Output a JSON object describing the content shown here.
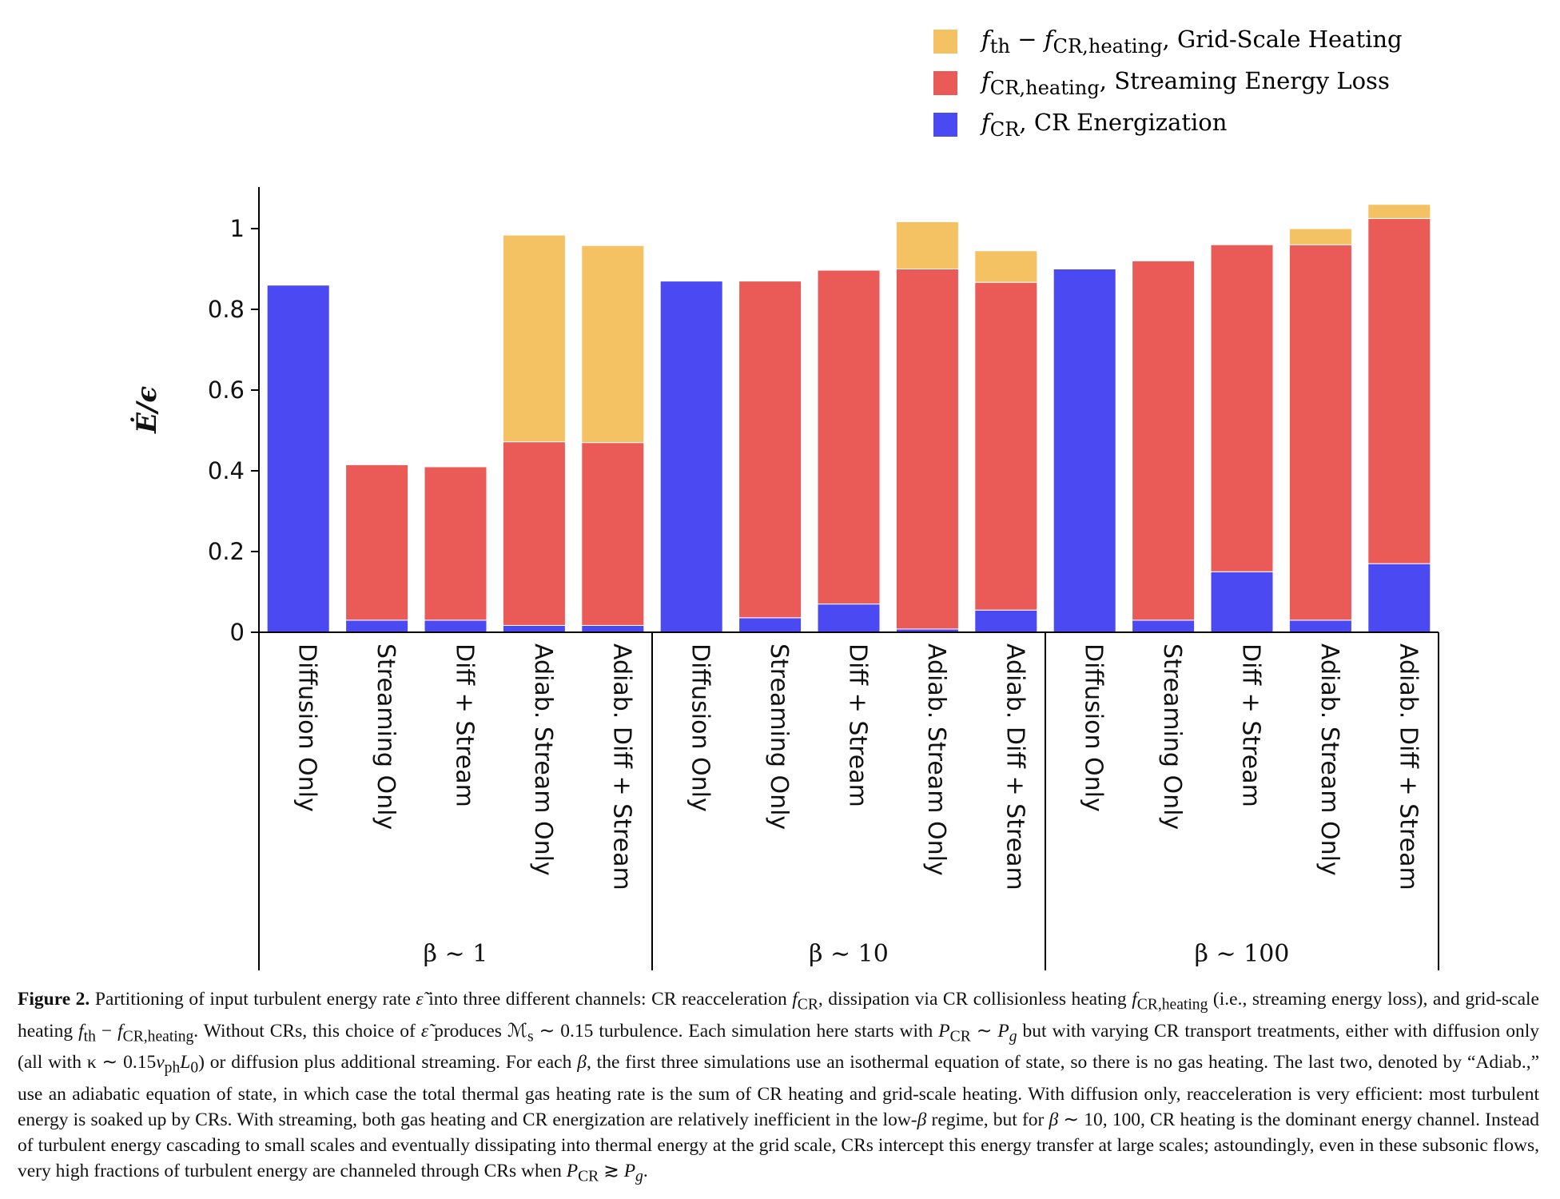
{
  "chart_data": {
    "type": "bar",
    "stacked": true,
    "ylabel": "Ė/ϵ",
    "ylim": [
      0,
      1.1
    ],
    "yticks": [
      0,
      0.2,
      0.4,
      0.6,
      0.8,
      1
    ],
    "ytick_labels": [
      "0",
      "0.2",
      "0.4",
      "0.6",
      "0.8",
      "1"
    ],
    "grid": false,
    "legend_position": "top-right",
    "categories": [
      "Diffusion Only",
      "Streaming Only",
      "Diff + Stream",
      "Adiab. Stream Only",
      "Adiab. Diff + Stream",
      "Diffusion Only",
      "Streaming Only",
      "Diff + Stream",
      "Adiab. Stream Only",
      "Adiab. Diff + Stream",
      "Diffusion Only",
      "Streaming Only",
      "Diff + Stream",
      "Adiab. Stream Only",
      "Adiab. Diff + Stream"
    ],
    "groups": [
      {
        "label": "β ∼ 1",
        "start": 0,
        "end": 4
      },
      {
        "label": "β ∼ 10",
        "start": 5,
        "end": 9
      },
      {
        "label": "β ∼ 100",
        "start": 10,
        "end": 14
      }
    ],
    "series": [
      {
        "name": "f_CR, CR Energization",
        "color": "#4b4af2",
        "values": [
          0.86,
          0.03,
          0.03,
          0.017,
          0.017,
          0.87,
          0.036,
          0.07,
          0.008,
          0.055,
          0.9,
          0.03,
          0.15,
          0.03,
          0.17
        ]
      },
      {
        "name": "f_CR,heating, Streaming Energy Loss",
        "color": "#ea5b58",
        "values": [
          0,
          0.385,
          0.38,
          0.455,
          0.453,
          0,
          0.834,
          0.827,
          0.892,
          0.812,
          0,
          0.89,
          0.81,
          0.93,
          0.855
        ]
      },
      {
        "name": "f_th − f_CR,heating, Grid-Scale Heating",
        "color": "#f4c263",
        "values": [
          0,
          0,
          0,
          0.512,
          0.488,
          0,
          0,
          0,
          0.117,
          0.078,
          0,
          0,
          0,
          0.04,
          0.035
        ]
      }
    ]
  },
  "legend": [
    {
      "main": "f",
      "sub": "th",
      "mid": " − ",
      "main2": "f",
      "sub2": "CR,heating",
      "text": ", Grid-Scale Heating",
      "color": "#f4c263"
    },
    {
      "main": "f",
      "sub": "CR,heating",
      "text": ", Streaming Energy Loss",
      "color": "#ea5b58"
    },
    {
      "main": "f",
      "sub": "CR",
      "text": ", CR Energization",
      "color": "#4b4af2"
    }
  ],
  "caption": {
    "label": "Figure 2.",
    "p1": " Partitioning of input turbulent energy rate ",
    "eps": "ε̃",
    "p2": " into three different channels: CR reacceleration ",
    "p3": ", dissipation via CR collisionless heating ",
    "p4": " (i.e., streaming energy loss), and grid-scale heating ",
    "p5": ". Without CRs, this choice of ",
    "p6": " produces ",
    "mach": "ℳ",
    "p7": " ∼ 0.15 turbulence. Each simulation here starts with ",
    "p8": " but with varying CR transport treatments, either with diffusion only (all with ",
    "kappa": "κ ∼ 0.15",
    "p9": ") or diffusion plus additional streaming. For each ",
    "beta": "β",
    "p10": ", the first three simulations use an isothermal equation of state, so there is no gas heating. The last two, denoted by “Adiab.,” use an adiabatic equation of state, in which case the total thermal gas heating rate is the sum of CR heating and grid-scale heating. With diffusion only, reacceleration is very efficient: most turbulent energy is soaked up by CRs. With streaming, both gas heating and CR energization are relatively inefficient in the low-",
    "p11": " regime, but for ",
    "p12": " ∼ 10, 100, CR heating is the dominant energy channel. Instead of turbulent energy cascading to small scales and eventually dissipating into thermal energy at the grid scale, CRs intercept this energy transfer at large scales; astoundingly, even in these subsonic flows, very high fractions of turbulent energy are channeled through CRs when ",
    "p13": "."
  }
}
